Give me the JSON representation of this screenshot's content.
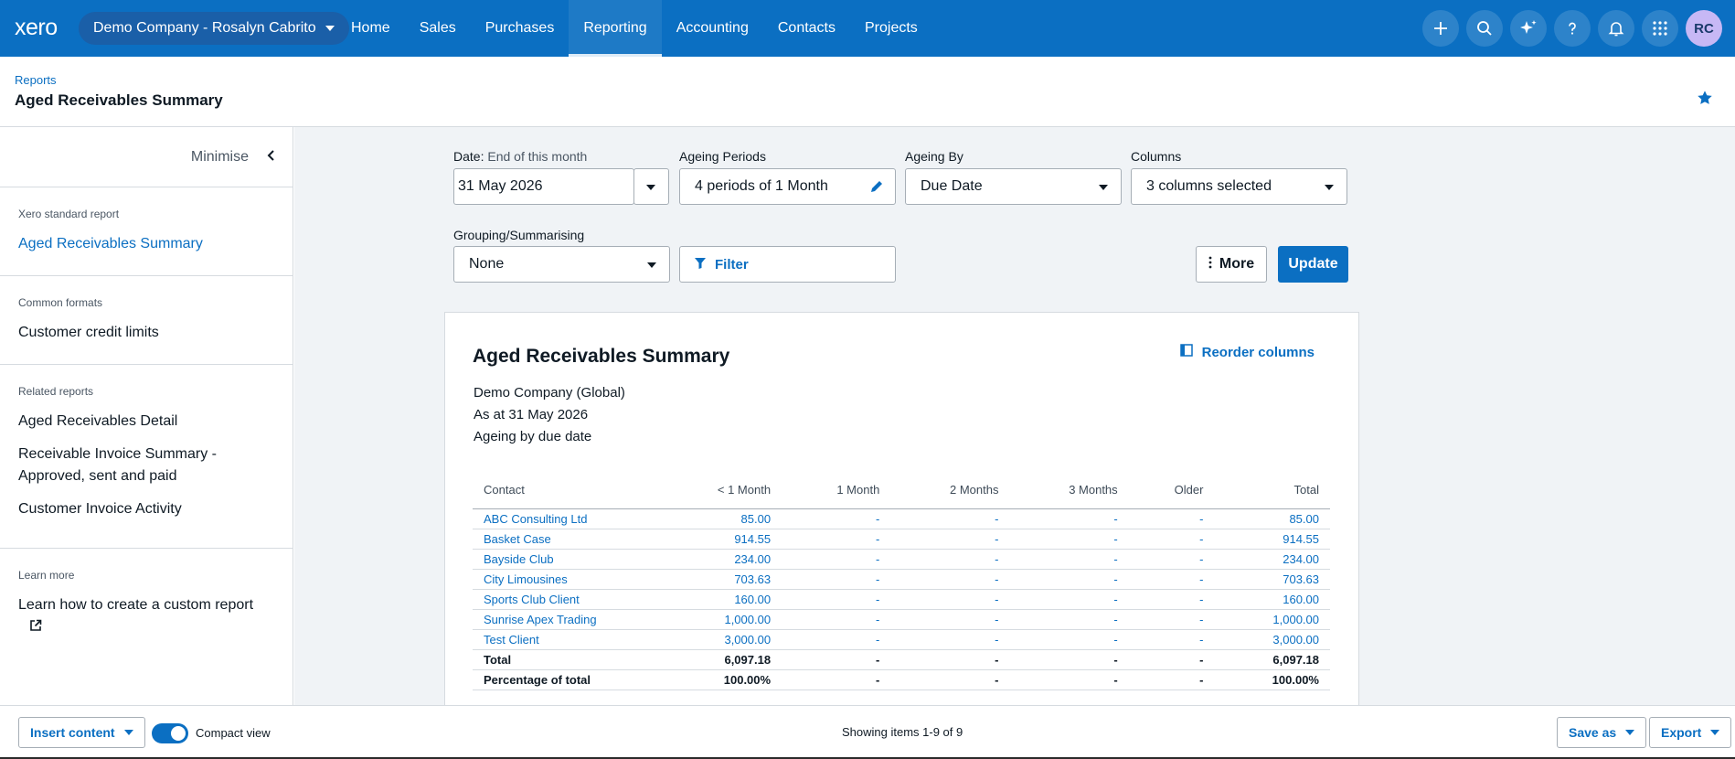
{
  "topbar": {
    "logo": "xero",
    "org_name": "Demo Company - Rosalyn Cabrito",
    "nav": [
      {
        "label": "Home",
        "active": false
      },
      {
        "label": "Sales",
        "active": false
      },
      {
        "label": "Purchases",
        "active": false
      },
      {
        "label": "Reporting",
        "active": true
      },
      {
        "label": "Accounting",
        "active": false
      },
      {
        "label": "Contacts",
        "active": false
      },
      {
        "label": "Projects",
        "active": false
      }
    ],
    "icons": [
      "plus-icon",
      "search-icon",
      "sparkle-icon",
      "help-icon",
      "bell-icon",
      "apps-grid-icon"
    ],
    "avatar_initials": "RC"
  },
  "header": {
    "breadcrumb": "Reports",
    "title": "Aged Receivables Summary"
  },
  "sidebar": {
    "minimise_label": "Minimise",
    "sections": [
      {
        "heading": "Xero standard report",
        "links": [
          "Aged Receivables Summary"
        ]
      },
      {
        "heading": "Common formats",
        "links": [
          "Customer credit limits"
        ]
      },
      {
        "heading": "Related reports",
        "links": [
          "Aged Receivables Detail",
          "Receivable Invoice Summary - Approved, sent and paid",
          "Customer Invoice Activity"
        ]
      },
      {
        "heading": "Learn more",
        "links": [
          "Learn how to create a custom report"
        ]
      }
    ]
  },
  "filters": {
    "date_label": "Date:",
    "date_sub": "End of this month",
    "date_value": "31 May 2026",
    "ageing_periods_label": "Ageing Periods",
    "ageing_periods_value": "4 periods of 1 Month",
    "ageing_by_label": "Ageing By",
    "ageing_by_value": "Due Date",
    "columns_label": "Columns",
    "columns_value": "3 columns selected",
    "grouping_label": "Grouping/Summarising",
    "grouping_value": "None",
    "filter_label": "Filter",
    "more_label": "More",
    "update_label": "Update"
  },
  "report": {
    "title": "Aged Receivables Summary",
    "reorder_label": "Reorder columns",
    "company": "Demo Company (Global)",
    "as_at": "As at 31 May 2026",
    "ageing_note": "Ageing by due date",
    "columns": [
      "Contact",
      "< 1 Month",
      "1 Month",
      "2 Months",
      "3 Months",
      "Older",
      "Total"
    ],
    "rows": [
      [
        "ABC Consulting Ltd",
        "85.00",
        "-",
        "-",
        "-",
        "-",
        "85.00"
      ],
      [
        "Basket Case",
        "914.55",
        "-",
        "-",
        "-",
        "-",
        "914.55"
      ],
      [
        "Bayside Club",
        "234.00",
        "-",
        "-",
        "-",
        "-",
        "234.00"
      ],
      [
        "City Limousines",
        "703.63",
        "-",
        "-",
        "-",
        "-",
        "703.63"
      ],
      [
        "Sports Club Client",
        "160.00",
        "-",
        "-",
        "-",
        "-",
        "160.00"
      ],
      [
        "Sunrise Apex Trading",
        "1,000.00",
        "-",
        "-",
        "-",
        "-",
        "1,000.00"
      ],
      [
        "Test Client",
        "3,000.00",
        "-",
        "-",
        "-",
        "-",
        "3,000.00"
      ]
    ],
    "total_row": [
      "Total",
      "6,097.18",
      "-",
      "-",
      "-",
      "-",
      "6,097.18"
    ],
    "percent_row": [
      "Percentage of total",
      "100.00%",
      "-",
      "-",
      "-",
      "-",
      "100.00%"
    ]
  },
  "bottombar": {
    "insert_label": "Insert content",
    "compact_label": "Compact view",
    "compact_on": true,
    "showing": "Showing items 1-9 of 9",
    "save_label": "Save as",
    "export_label": "Export"
  }
}
